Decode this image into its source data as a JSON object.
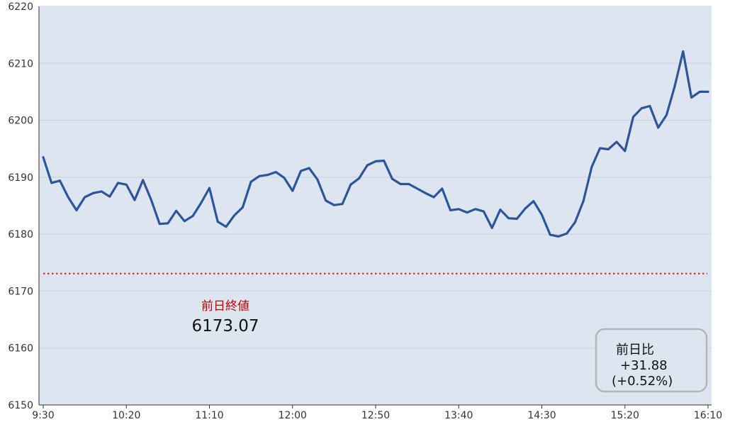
{
  "chart_data": {
    "type": "line",
    "title": "",
    "xlabel": "",
    "ylabel": "",
    "ylim": [
      6150,
      6220
    ],
    "y_ticks": [
      "6150",
      "6160",
      "6170",
      "6180",
      "6190",
      "6200",
      "6210",
      "6220"
    ],
    "x_tick_labels": [
      "9:30",
      "10:20",
      "11:10",
      "12:00",
      "12:50",
      "13:40",
      "14:30",
      "15:20",
      "16:10"
    ],
    "grid": true,
    "colors": {
      "line": "#2e5597",
      "plot_background": "#dde5f1",
      "gridline": "#c9d1dd",
      "reference_line": "#c0392b"
    },
    "series": [
      {
        "values": [
          6193.5,
          6189.0,
          6189.4,
          6186.5,
          6184.2,
          6186.5,
          6187.2,
          6187.5,
          6186.6,
          6189.0,
          6188.7,
          6186.0,
          6189.5,
          6186.0,
          6181.8,
          6181.9,
          6184.1,
          6182.3,
          6183.2,
          6185.5,
          6188.1,
          6182.2,
          6181.3,
          6183.3,
          6184.7,
          6189.2,
          6190.2,
          6190.4,
          6190.9,
          6189.9,
          6187.6,
          6191.1,
          6191.6,
          6189.6,
          6185.9,
          6185.1,
          6185.3,
          6188.7,
          6189.8,
          6192.1,
          6192.8,
          6192.9,
          6189.7,
          6188.8,
          6188.8,
          6188.0,
          6187.2,
          6186.5,
          6188.0,
          6184.2,
          6184.4,
          6183.8,
          6184.4,
          6184.0,
          6181.1,
          6184.3,
          6182.8,
          6182.7,
          6184.5,
          6185.8,
          6183.4,
          6179.9,
          6179.6,
          6180.1,
          6182.1,
          6185.8,
          6191.8,
          6195.1,
          6194.9,
          6196.2,
          6194.6,
          6200.6,
          6202.1,
          6202.5,
          6198.7,
          6200.9,
          6206.0,
          6212.1,
          6204.0,
          6205.0,
          6205.0
        ]
      }
    ],
    "reference_line": {
      "label": "前日終値",
      "value": 6173.07,
      "value_text": "6173.07"
    },
    "change_box": {
      "label": "前日比",
      "change_text": "+31.88",
      "percent_text": "(+0.52%)"
    }
  }
}
